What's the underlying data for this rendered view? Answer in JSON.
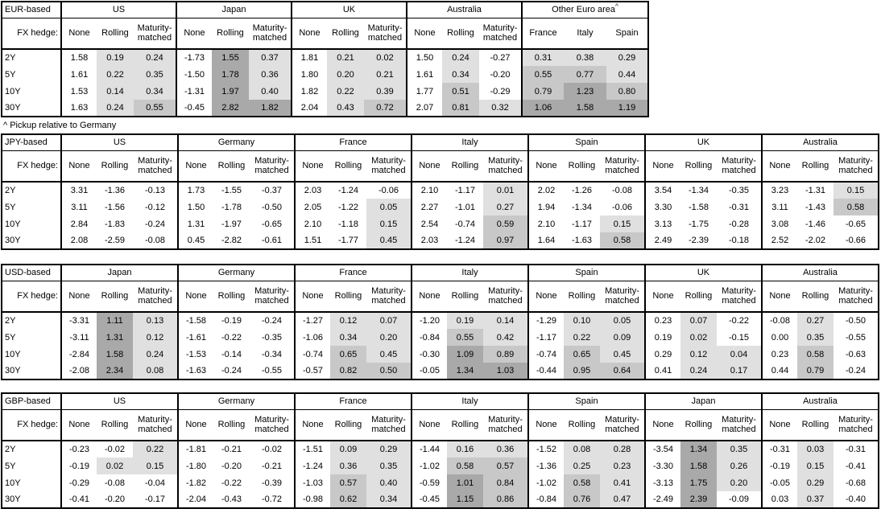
{
  "footnote": "^ Pickup relative to Germany",
  "labels": {
    "fx_hedge": "FX hedge:",
    "tenors": [
      "2Y",
      "5Y",
      "10Y",
      "30Y"
    ],
    "hedge_cols": [
      "None",
      "Rolling",
      "Maturity-matched"
    ]
  },
  "shade_colors": {
    "light": "#e0e0e0",
    "medium": "#c8c8c8",
    "dark": "#a9a9a9"
  },
  "tables": [
    {
      "base": "EUR-based",
      "groups": [
        {
          "name": "US",
          "cols": "hedge",
          "rows": [
            [
              "1.58",
              "0.19",
              "0.24"
            ],
            [
              "1.61",
              "0.22",
              "0.35"
            ],
            [
              "1.53",
              "0.14",
              "0.34"
            ],
            [
              "1.63",
              "0.24",
              "0.55"
            ]
          ]
        },
        {
          "name": "Japan",
          "cols": "hedge",
          "rows": [
            [
              "-1.73",
              "1.55",
              "0.37"
            ],
            [
              "-1.50",
              "1.78",
              "0.36"
            ],
            [
              "-1.31",
              "1.97",
              "0.40"
            ],
            [
              "-0.45",
              "2.82",
              "1.82"
            ]
          ]
        },
        {
          "name": "UK",
          "cols": "hedge",
          "rows": [
            [
              "1.81",
              "0.21",
              "0.02"
            ],
            [
              "1.80",
              "0.20",
              "0.21"
            ],
            [
              "1.82",
              "0.22",
              "0.39"
            ],
            [
              "2.04",
              "0.43",
              "0.72"
            ]
          ]
        },
        {
          "name": "Australia",
          "cols": "hedge",
          "rows": [
            [
              "1.50",
              "0.24",
              "-0.27"
            ],
            [
              "1.61",
              "0.34",
              "-0.20"
            ],
            [
              "1.77",
              "0.51",
              "-0.29"
            ],
            [
              "2.07",
              "0.81",
              "0.32"
            ]
          ]
        },
        {
          "name": "Other Euro area",
          "sup": "^",
          "cols": "countries",
          "columns": [
            "France",
            "Italy",
            "Spain"
          ],
          "shade_all": true,
          "rows": [
            [
              "0.31",
              "0.38",
              "0.29"
            ],
            [
              "0.55",
              "0.77",
              "0.44"
            ],
            [
              "0.79",
              "1.23",
              "0.80"
            ],
            [
              "1.06",
              "1.58",
              "1.19"
            ]
          ]
        }
      ]
    },
    {
      "base": "JPY-based",
      "groups": [
        {
          "name": "US",
          "cols": "hedge",
          "rows": [
            [
              "3.31",
              "-1.36",
              "-0.13"
            ],
            [
              "3.11",
              "-1.56",
              "-0.12"
            ],
            [
              "2.84",
              "-1.83",
              "-0.24"
            ],
            [
              "2.08",
              "-2.59",
              "-0.08"
            ]
          ]
        },
        {
          "name": "Germany",
          "cols": "hedge",
          "rows": [
            [
              "1.73",
              "-1.55",
              "-0.37"
            ],
            [
              "1.50",
              "-1.78",
              "-0.50"
            ],
            [
              "1.31",
              "-1.97",
              "-0.65"
            ],
            [
              "0.45",
              "-2.82",
              "-0.61"
            ]
          ]
        },
        {
          "name": "France",
          "cols": "hedge",
          "rows": [
            [
              "2.03",
              "-1.24",
              "-0.06"
            ],
            [
              "2.05",
              "-1.22",
              "0.05"
            ],
            [
              "2.10",
              "-1.18",
              "0.15"
            ],
            [
              "1.51",
              "-1.77",
              "0.45"
            ]
          ]
        },
        {
          "name": "Italy",
          "cols": "hedge",
          "rows": [
            [
              "2.10",
              "-1.17",
              "0.01"
            ],
            [
              "2.27",
              "-1.01",
              "0.27"
            ],
            [
              "2.54",
              "-0.74",
              "0.59"
            ],
            [
              "2.03",
              "-1.24",
              "0.97"
            ]
          ]
        },
        {
          "name": "Spain",
          "cols": "hedge",
          "rows": [
            [
              "2.02",
              "-1.26",
              "-0.08"
            ],
            [
              "1.94",
              "-1.34",
              "-0.06"
            ],
            [
              "2.10",
              "-1.17",
              "0.15"
            ],
            [
              "1.64",
              "-1.63",
              "0.58"
            ]
          ]
        },
        {
          "name": "UK",
          "cols": "hedge",
          "rows": [
            [
              "3.54",
              "-1.34",
              "-0.35"
            ],
            [
              "3.30",
              "-1.58",
              "-0.31"
            ],
            [
              "3.13",
              "-1.75",
              "-0.28"
            ],
            [
              "2.49",
              "-2.39",
              "-0.18"
            ]
          ]
        },
        {
          "name": "Australia",
          "cols": "hedge",
          "rows": [
            [
              "3.23",
              "-1.31",
              "0.15"
            ],
            [
              "3.11",
              "-1.43",
              "0.58"
            ],
            [
              "3.08",
              "-1.46",
              "-0.65"
            ],
            [
              "2.52",
              "-2.02",
              "-0.66"
            ]
          ]
        }
      ]
    },
    {
      "base": "USD-based",
      "groups": [
        {
          "name": "Japan",
          "cols": "hedge",
          "rows": [
            [
              "-3.31",
              "1.11",
              "0.13"
            ],
            [
              "-3.11",
              "1.31",
              "0.12"
            ],
            [
              "-2.84",
              "1.58",
              "0.24"
            ],
            [
              "-2.08",
              "2.34",
              "0.08"
            ]
          ]
        },
        {
          "name": "Germany",
          "cols": "hedge",
          "rows": [
            [
              "-1.58",
              "-0.19",
              "-0.24"
            ],
            [
              "-1.61",
              "-0.22",
              "-0.35"
            ],
            [
              "-1.53",
              "-0.14",
              "-0.34"
            ],
            [
              "-1.63",
              "-0.24",
              "-0.55"
            ]
          ]
        },
        {
          "name": "France",
          "cols": "hedge",
          "rows": [
            [
              "-1.27",
              "0.12",
              "0.07"
            ],
            [
              "-1.06",
              "0.34",
              "0.20"
            ],
            [
              "-0.74",
              "0.65",
              "0.45"
            ],
            [
              "-0.57",
              "0.82",
              "0.50"
            ]
          ]
        },
        {
          "name": "Italy",
          "cols": "hedge",
          "rows": [
            [
              "-1.20",
              "0.19",
              "0.14"
            ],
            [
              "-0.84",
              "0.55",
              "0.42"
            ],
            [
              "-0.30",
              "1.09",
              "0.89"
            ],
            [
              "-0.05",
              "1.34",
              "1.03"
            ]
          ]
        },
        {
          "name": "Spain",
          "cols": "hedge",
          "rows": [
            [
              "-1.29",
              "0.10",
              "0.05"
            ],
            [
              "-1.17",
              "0.22",
              "0.09"
            ],
            [
              "-0.74",
              "0.65",
              "0.45"
            ],
            [
              "-0.44",
              "0.95",
              "0.64"
            ]
          ]
        },
        {
          "name": "UK",
          "cols": "hedge",
          "rows": [
            [
              "0.23",
              "0.07",
              "-0.22"
            ],
            [
              "0.19",
              "0.02",
              "-0.15"
            ],
            [
              "0.29",
              "0.12",
              "0.04"
            ],
            [
              "0.41",
              "0.24",
              "0.17"
            ]
          ]
        },
        {
          "name": "Australia",
          "cols": "hedge",
          "rows": [
            [
              "-0.08",
              "0.27",
              "-0.50"
            ],
            [
              "0.00",
              "0.35",
              "-0.55"
            ],
            [
              "0.23",
              "0.58",
              "-0.63"
            ],
            [
              "0.44",
              "0.79",
              "-0.24"
            ]
          ]
        }
      ]
    },
    {
      "base": "GBP-based",
      "groups": [
        {
          "name": "US",
          "cols": "hedge",
          "rows": [
            [
              "-0.23",
              "-0.02",
              "0.22"
            ],
            [
              "-0.19",
              "0.02",
              "0.15"
            ],
            [
              "-0.29",
              "-0.08",
              "-0.04"
            ],
            [
              "-0.41",
              "-0.20",
              "-0.17"
            ]
          ]
        },
        {
          "name": "Germany",
          "cols": "hedge",
          "rows": [
            [
              "-1.81",
              "-0.21",
              "-0.02"
            ],
            [
              "-1.80",
              "-0.20",
              "-0.21"
            ],
            [
              "-1.82",
              "-0.22",
              "-0.39"
            ],
            [
              "-2.04",
              "-0.43",
              "-0.72"
            ]
          ]
        },
        {
          "name": "France",
          "cols": "hedge",
          "rows": [
            [
              "-1.51",
              "0.09",
              "0.29"
            ],
            [
              "-1.24",
              "0.36",
              "0.35"
            ],
            [
              "-1.03",
              "0.57",
              "0.40"
            ],
            [
              "-0.98",
              "0.62",
              "0.34"
            ]
          ]
        },
        {
          "name": "Italy",
          "cols": "hedge",
          "rows": [
            [
              "-1.44",
              "0.16",
              "0.36"
            ],
            [
              "-1.02",
              "0.58",
              "0.57"
            ],
            [
              "-0.59",
              "1.01",
              "0.84"
            ],
            [
              "-0.45",
              "1.15",
              "0.86"
            ]
          ]
        },
        {
          "name": "Spain",
          "cols": "hedge",
          "rows": [
            [
              "-1.52",
              "0.08",
              "0.28"
            ],
            [
              "-1.36",
              "0.25",
              "0.23"
            ],
            [
              "-1.02",
              "0.58",
              "0.41"
            ],
            [
              "-0.84",
              "0.76",
              "0.47"
            ]
          ]
        },
        {
          "name": "Japan",
          "cols": "hedge",
          "rows": [
            [
              "-3.54",
              "1.34",
              "0.35"
            ],
            [
              "-3.30",
              "1.58",
              "0.26"
            ],
            [
              "-3.13",
              "1.75",
              "0.20"
            ],
            [
              "-2.49",
              "2.39",
              "-0.09"
            ]
          ]
        },
        {
          "name": "Australia",
          "cols": "hedge",
          "rows": [
            [
              "-0.31",
              "0.03",
              "-0.31"
            ],
            [
              "-0.19",
              "0.15",
              "-0.41"
            ],
            [
              "-0.05",
              "0.29",
              "-0.68"
            ],
            [
              "0.03",
              "0.37",
              "-0.40"
            ]
          ]
        }
      ]
    }
  ]
}
